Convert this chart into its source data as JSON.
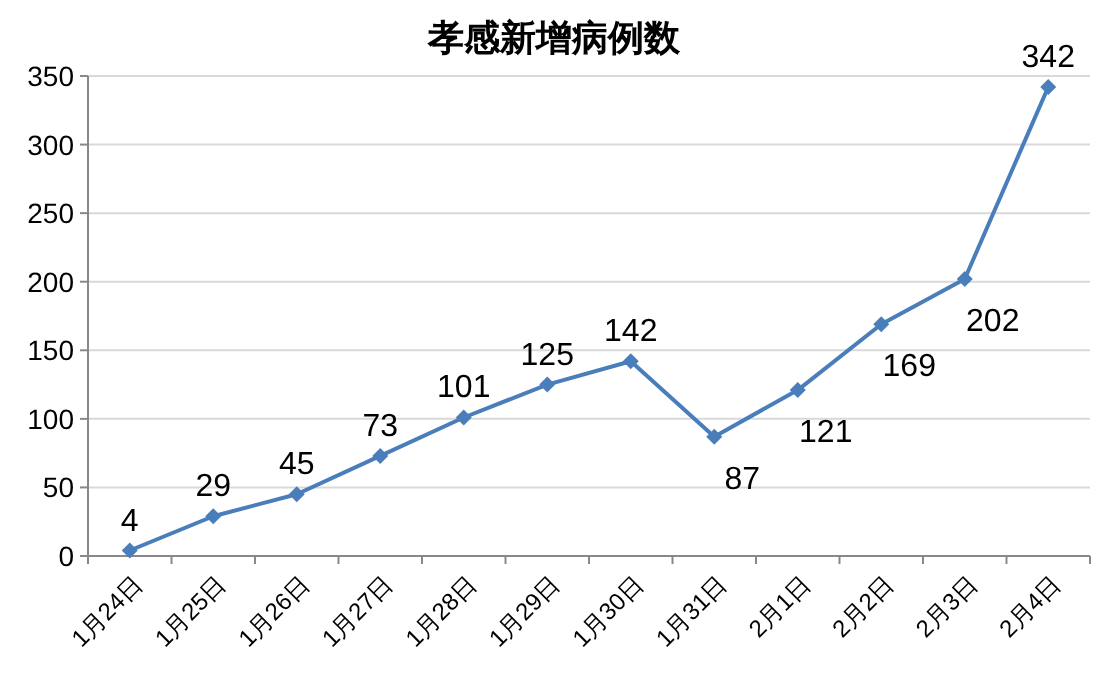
{
  "chart_data": {
    "type": "line",
    "title": "孝感新增病例数",
    "categories": [
      "1月24日",
      "1月25日",
      "1月26日",
      "1月27日",
      "1月28日",
      "1月29日",
      "1月30日",
      "1月31日",
      "2月1日",
      "2月2日",
      "2月3日",
      "2月4日"
    ],
    "series": [
      {
        "color": "#4a7ebb",
        "values": [
          4,
          29,
          45,
          73,
          101,
          125,
          142,
          87,
          121,
          169,
          202,
          342
        ]
      }
    ],
    "ylim": [
      0,
      350
    ],
    "yticks": [
      0,
      50,
      100,
      150,
      200,
      250,
      300,
      350
    ],
    "grid": "y",
    "marker": "diamond",
    "data_labels": true
  }
}
